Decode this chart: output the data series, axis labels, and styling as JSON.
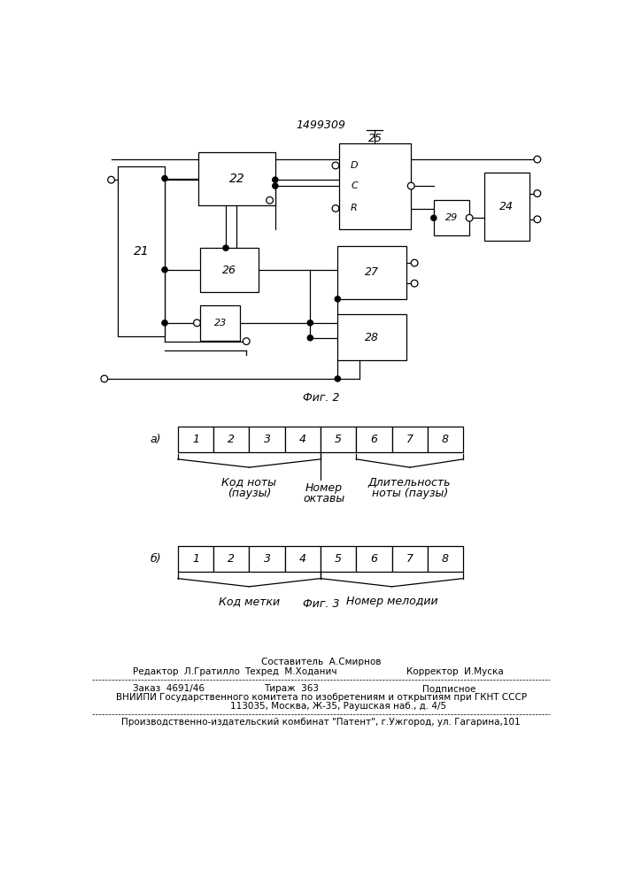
{
  "patent_number": "1499309",
  "background": "#ffffff",
  "line_color": "#000000",
  "lw": 0.9,
  "fig2_label": "Фиг. 2",
  "fig3_label": "Фиг. 3",
  "footer": {
    "line1_center": "Составитель  А.Смирнов",
    "line2_left": "Редактор  Л.Гратилло",
    "line2_center": "Техред  М.Ходанич",
    "line2_right": "Корректор  И.Муска",
    "line3_left": "Заказ  4691/46",
    "line3_center": "Тираж  363",
    "line3_right": "Подписное",
    "line4": "ВНИИПИ Государственного комитета по изобретениям и открытиям при ГКНТ СССР",
    "line5": "113035, Москва, Ж-35, Раушская наб., д. 4/5",
    "line6": "Производственно-издательский комбинат \"Патент\", г.Ужгород, ул. Гагарина,101"
  }
}
